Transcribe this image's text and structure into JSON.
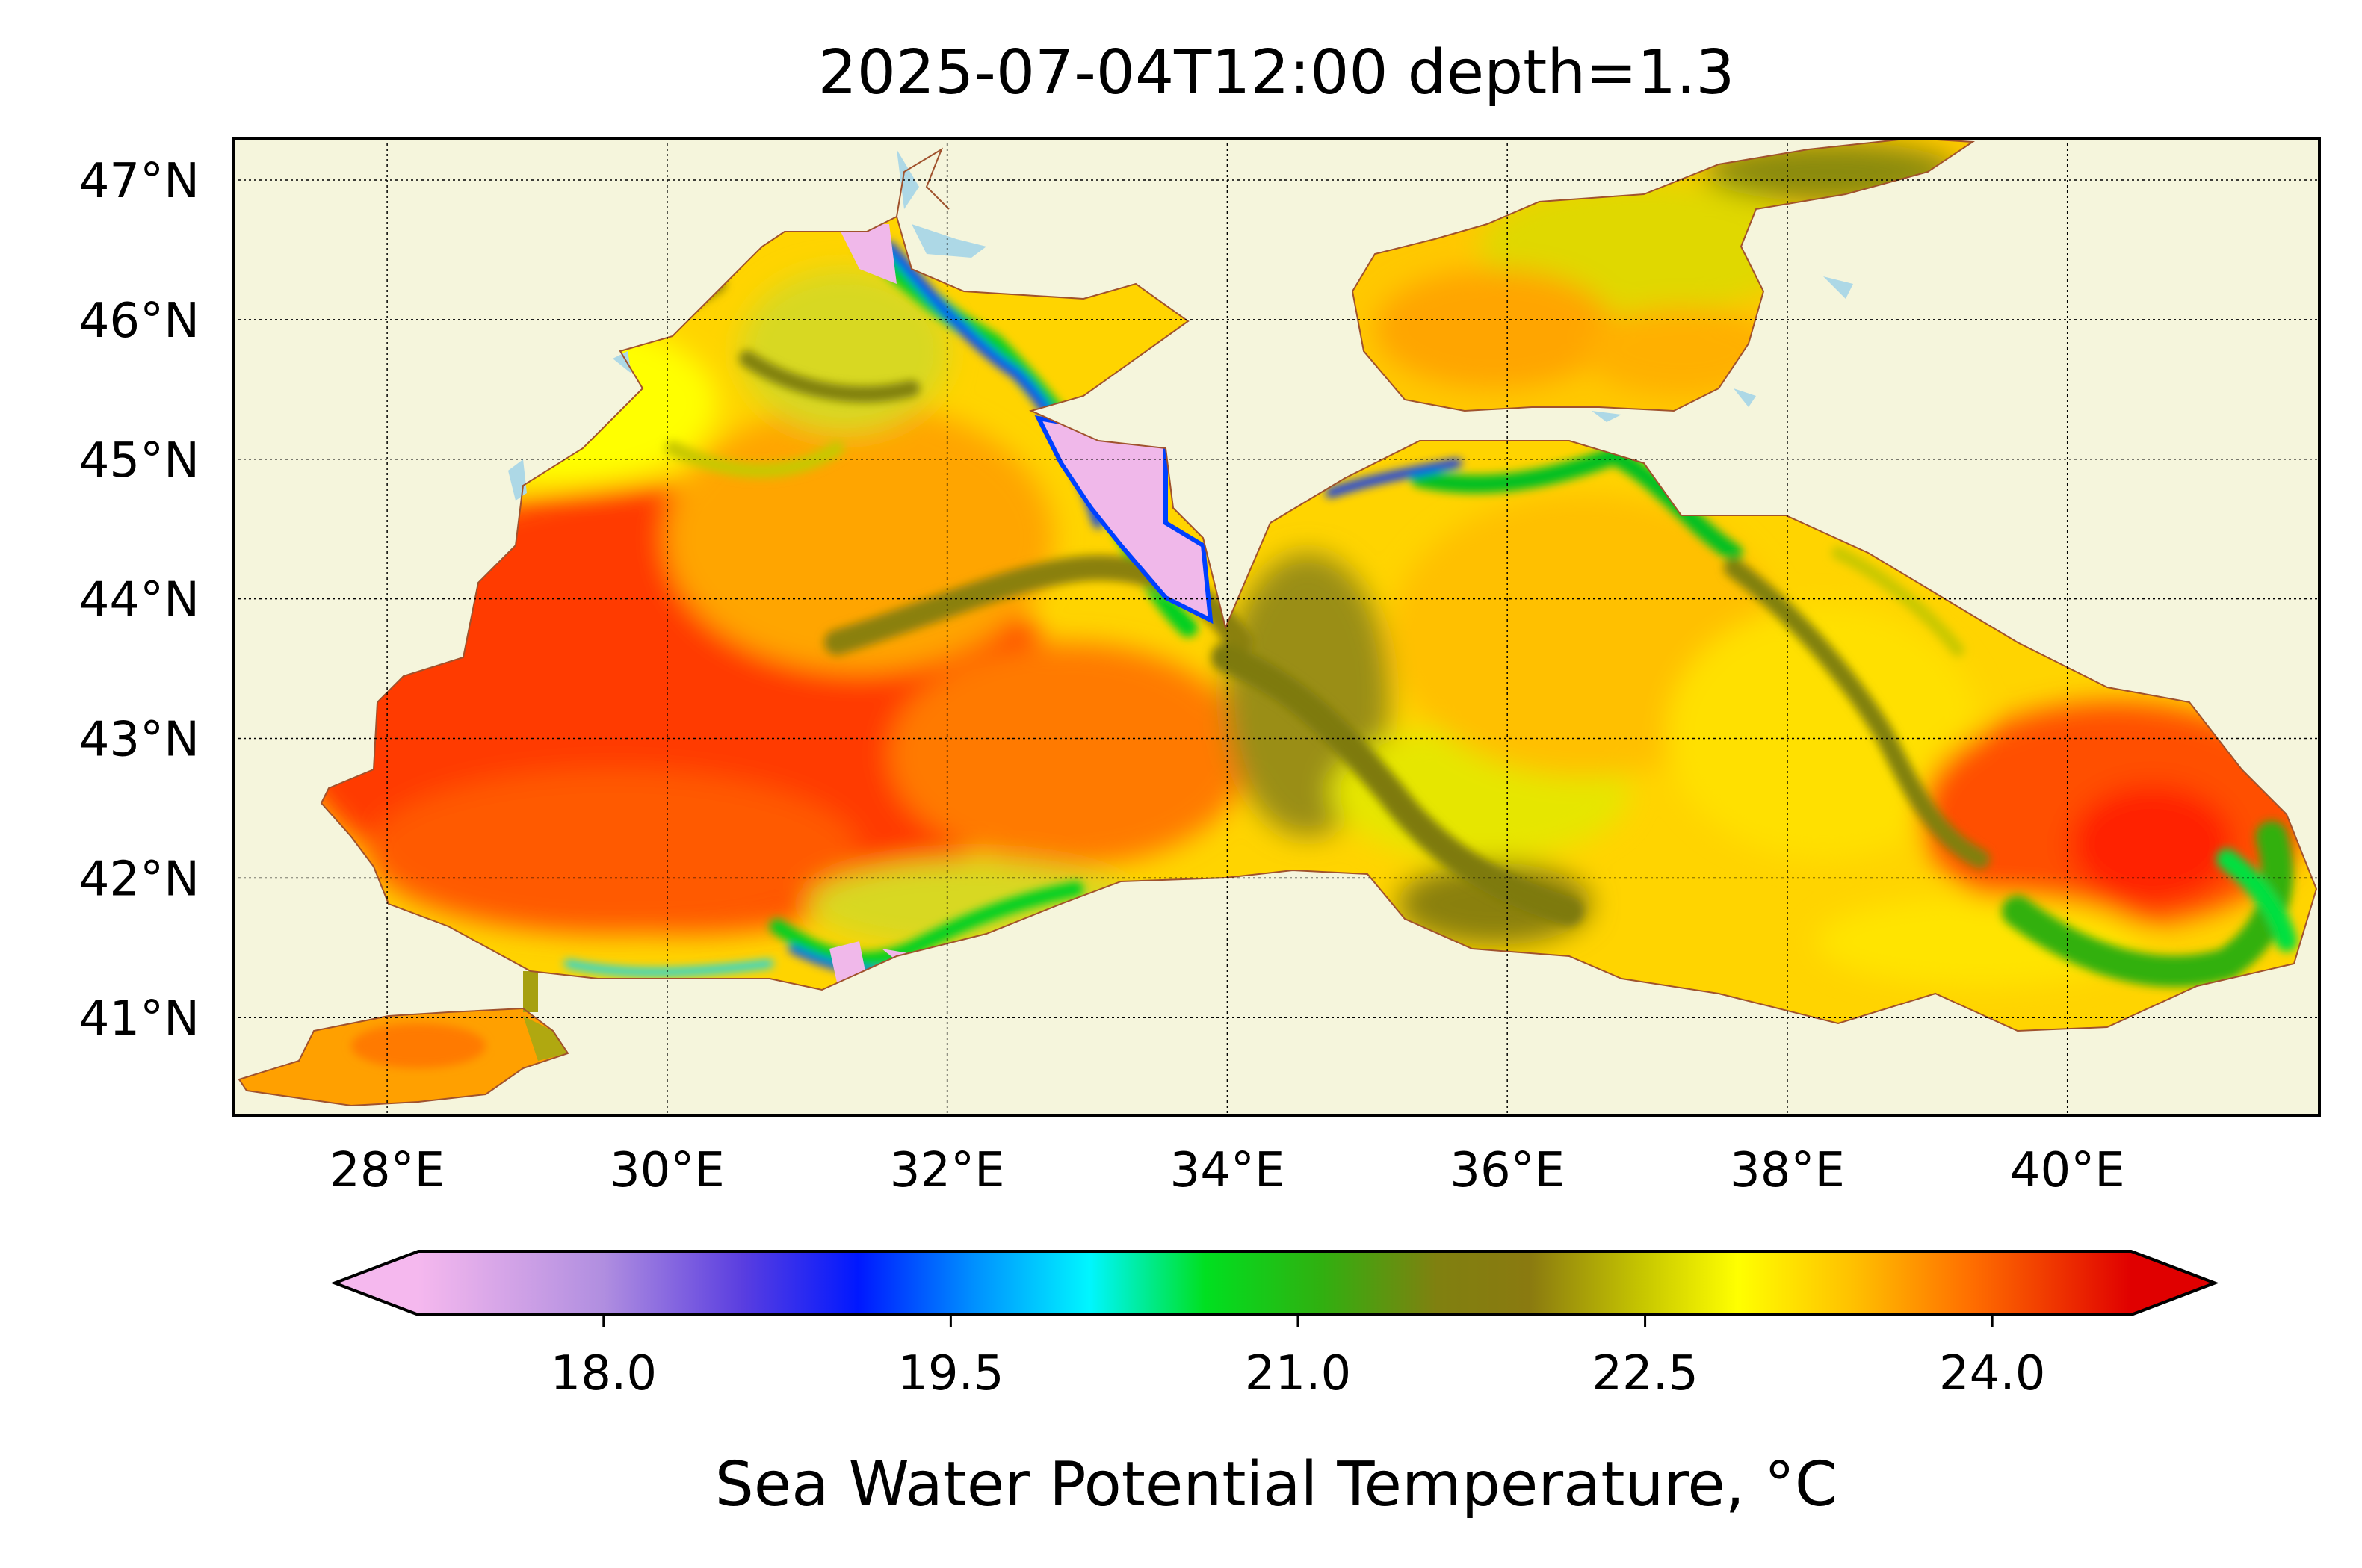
{
  "map": {
    "title": "2025-07-04T12:00 depth=1.3",
    "lon_range": [
      26.9,
      41.8
    ],
    "lat_range": [
      40.3,
      47.3
    ],
    "lon_ticks": [
      {
        "value": 28,
        "label": "28°E"
      },
      {
        "value": 30,
        "label": "30°E"
      },
      {
        "value": 32,
        "label": "32°E"
      },
      {
        "value": 34,
        "label": "34°E"
      },
      {
        "value": 36,
        "label": "36°E"
      },
      {
        "value": 38,
        "label": "38°E"
      },
      {
        "value": 40,
        "label": "40°E"
      }
    ],
    "lat_ticks": [
      {
        "value": 41,
        "label": "41°N"
      },
      {
        "value": 42,
        "label": "42°N"
      },
      {
        "value": 43,
        "label": "43°N"
      },
      {
        "value": 44,
        "label": "44°N"
      },
      {
        "value": 45,
        "label": "45°N"
      },
      {
        "value": 46,
        "label": "46°N"
      },
      {
        "value": 47,
        "label": "47°N"
      }
    ],
    "grid": true,
    "land_color": "#f5f5dc",
    "coast_color": "#a0522d",
    "lake_color": "#add8e6"
  },
  "colorbar": {
    "label": "Sea Water Potential Temperature, °C",
    "vmin": 17.2,
    "vmax": 24.6,
    "extend": "both",
    "ticks": [
      {
        "value": 18.0,
        "label": "18.0"
      },
      {
        "value": 19.5,
        "label": "19.5"
      },
      {
        "value": 21.0,
        "label": "21.0"
      },
      {
        "value": 22.5,
        "label": "22.5"
      },
      {
        "value": 24.0,
        "label": "24.0"
      }
    ],
    "stops": [
      {
        "value": 17.2,
        "color": "#f5b8ee"
      },
      {
        "value": 18.0,
        "color": "#b08ee0"
      },
      {
        "value": 18.6,
        "color": "#5a3ee0"
      },
      {
        "value": 19.1,
        "color": "#0018ff"
      },
      {
        "value": 19.6,
        "color": "#0090ff"
      },
      {
        "value": 20.1,
        "color": "#00f6ff"
      },
      {
        "value": 20.6,
        "color": "#00e020"
      },
      {
        "value": 21.1,
        "color": "#30b010"
      },
      {
        "value": 21.6,
        "color": "#808010"
      },
      {
        "value": 22.0,
        "color": "#8a7a10"
      },
      {
        "value": 22.5,
        "color": "#c8c800"
      },
      {
        "value": 22.9,
        "color": "#ffff00"
      },
      {
        "value": 23.4,
        "color": "#ffc000"
      },
      {
        "value": 23.9,
        "color": "#ff7000"
      },
      {
        "value": 24.6,
        "color": "#e00000"
      }
    ]
  }
}
